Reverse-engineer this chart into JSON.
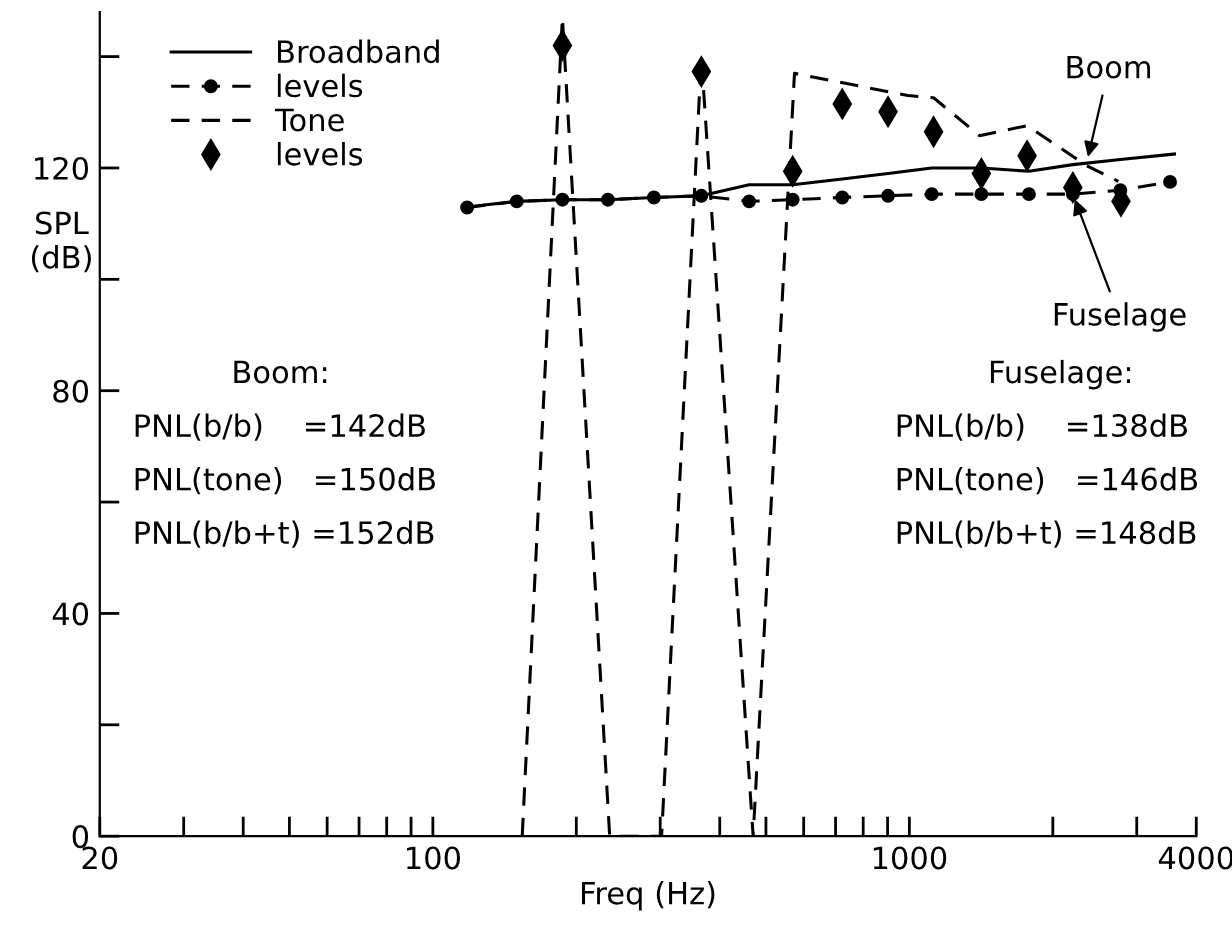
{
  "chart_data": {
    "type": "line",
    "xlabel": "Freq (Hz)",
    "ylabel": "SPL\n(dB)",
    "log": "x",
    "xlim": [
      20,
      4000
    ],
    "ylim": [
      0,
      148
    ],
    "xticks": [
      20,
      {
        "value": 30,
        "label": null
      },
      {
        "value": 40,
        "label": null
      },
      {
        "value": 50,
        "label": null
      },
      {
        "value": 60,
        "label": null
      },
      {
        "value": 70,
        "label": null
      },
      {
        "value": 80,
        "label": null
      },
      {
        "value": 90,
        "label": null
      },
      100,
      {
        "value": 200,
        "label": null
      },
      {
        "value": 300,
        "label": null
      },
      {
        "value": 400,
        "label": null
      },
      {
        "value": 500,
        "label": null
      },
      {
        "value": 600,
        "label": null
      },
      {
        "value": 700,
        "label": null
      },
      {
        "value": 800,
        "label": null
      },
      {
        "value": 900,
        "label": null
      },
      1000,
      {
        "value": 2000,
        "label": null
      },
      {
        "value": 3000,
        "label": null
      },
      4000
    ],
    "yticks": [
      0,
      {
        "value": 20,
        "label": null
      },
      40,
      {
        "value": 60,
        "label": null
      },
      80,
      {
        "value": 100,
        "label": null
      },
      120,
      {
        "value": 140,
        "label": null
      }
    ],
    "grid": false,
    "legend": "top left",
    "series": [
      {
        "name": "Broadband",
        "color": "#000000",
        "line_style": "solid",
        "marker": "none",
        "x": [
          118,
          150,
          187,
          233,
          291,
          366,
          461,
          569,
          723,
          902,
          1114,
          1416,
          1782,
          2203,
          2772,
          3600
        ],
        "values": [
          113,
          114,
          114.3,
          114.3,
          114.7,
          115,
          117,
          117,
          118,
          119,
          120,
          120,
          119.4,
          120.6,
          121.5,
          122.5
        ]
      },
      {
        "name": "levels",
        "color": "#000000",
        "line_style": "dashed",
        "marker": "circle",
        "x": [
          118,
          150,
          187,
          233,
          291,
          366,
          461,
          569,
          723,
          902,
          1114,
          1416,
          1782,
          2203,
          2772,
          3524
        ],
        "values": [
          112.9,
          114,
          114.3,
          114.3,
          114.7,
          115,
          114,
          114.3,
          114.7,
          115,
          115.3,
          115.3,
          115.3,
          115.3,
          116,
          117.5
        ]
      },
      {
        "name": "Tone",
        "color": "#000000",
        "line_style": "dashed",
        "marker": "none",
        "x": [
          154,
          187,
          235,
          302,
          366,
          470,
          574,
          993,
          1124,
          1403,
          1766,
          2356,
          2745
        ],
        "values": [
          0,
          147,
          0,
          0,
          140,
          0,
          137,
          133,
          132.6,
          125.8,
          127.6,
          120.4,
          117.6
        ]
      },
      {
        "name": "levels",
        "type": "scatter",
        "color": "#000000",
        "marker": "diamond",
        "x": [
          187,
          366,
          569,
          723,
          902,
          1124,
          1416,
          1766,
          2203,
          2780
        ],
        "values": [
          142,
          137.3,
          119.4,
          131.5,
          130.1,
          126.5,
          119,
          122.2,
          116.5,
          114
        ]
      }
    ],
    "annotations": [
      {
        "text": "Boom",
        "x": 2356,
        "y": 121
      },
      {
        "text": "Fuselage",
        "x": 2203,
        "y": 115.3
      },
      "Boom:",
      "PNL(b/b)    =142dB",
      "PNL(tone)   =150dB",
      "PNL(b/b+t) =152dB",
      "Fuselage:",
      "PNL(b/b)    =138dB",
      "PNL(tone)   =146dB",
      "PNL(b/b+t) =148dB"
    ]
  }
}
